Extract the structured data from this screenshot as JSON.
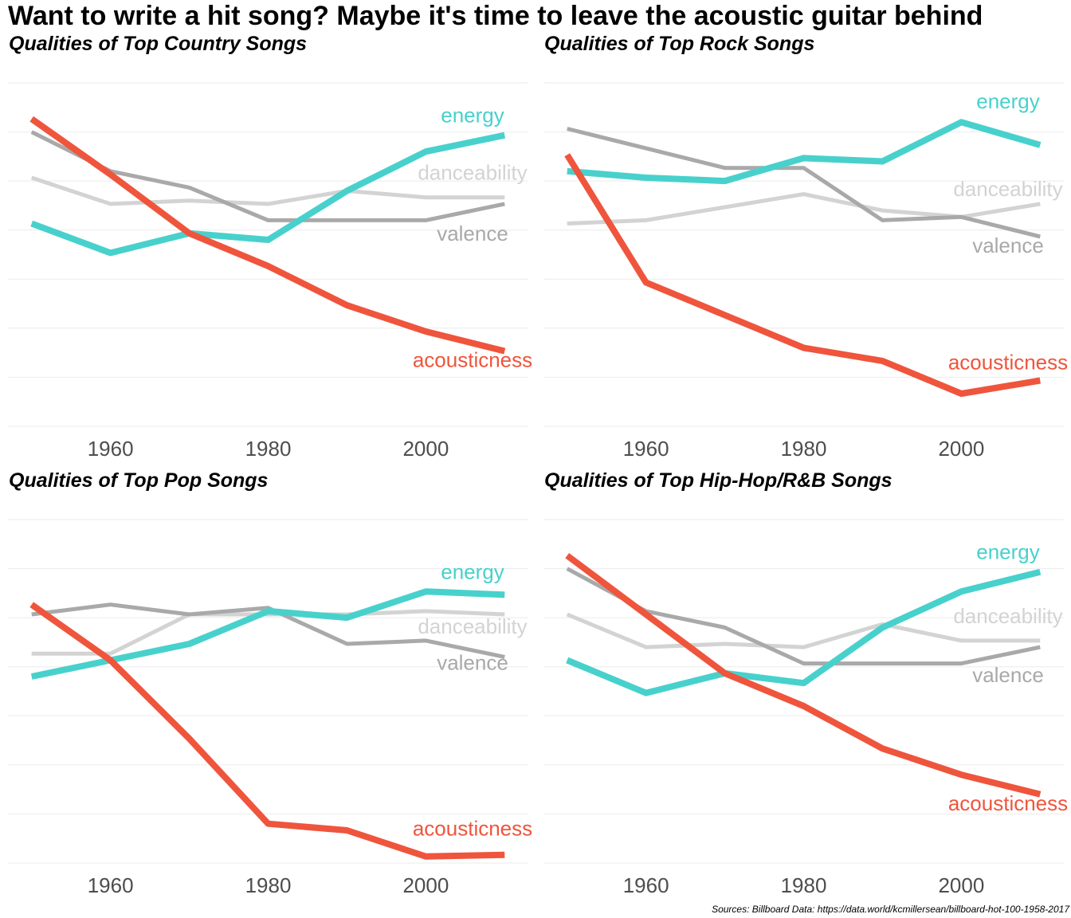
{
  "title": "Want to write a hit song? Maybe it's time to leave the acoustic guitar behind",
  "source": "Sources: Billboard Data: https://data.world/kcmillersean/billboard-hot-100-1958-2017",
  "colors": {
    "energy": "#48d1cc",
    "danceability": "#d3d3d3",
    "valence": "#a9a9a9",
    "acousticness": "#ef553c",
    "grid": "#ebebeb",
    "tick": "#4d4d4d"
  },
  "chart_data": [
    {
      "type": "line",
      "title": "Qualities of Top Country Songs",
      "x": [
        1950,
        1960,
        1970,
        1980,
        1990,
        2000,
        2010
      ],
      "xticks": [
        1960,
        1980,
        2000
      ],
      "xlim": [
        1947,
        2013
      ],
      "ylim": [
        -0.1,
        0.95
      ],
      "grid": true,
      "series": [
        {
          "name": "energy",
          "values": [
            0.52,
            0.43,
            0.49,
            0.47,
            0.62,
            0.74,
            0.79
          ]
        },
        {
          "name": "danceability",
          "values": [
            0.66,
            0.58,
            0.59,
            0.58,
            0.62,
            0.6,
            0.6
          ]
        },
        {
          "name": "valence",
          "values": [
            0.8,
            0.68,
            0.63,
            0.53,
            0.53,
            0.53,
            0.58
          ]
        },
        {
          "name": "acousticness",
          "values": [
            0.84,
            0.67,
            0.49,
            0.39,
            0.27,
            0.19,
            0.13
          ]
        }
      ]
    },
    {
      "type": "line",
      "title": "Qualities of Top Rock Songs",
      "x": [
        1950,
        1960,
        1970,
        1980,
        1990,
        2000,
        2010
      ],
      "xticks": [
        1960,
        1980,
        2000
      ],
      "xlim": [
        1947,
        2013
      ],
      "ylim": [
        -0.1,
        0.95
      ],
      "grid": true,
      "series": [
        {
          "name": "energy",
          "values": [
            0.68,
            0.66,
            0.65,
            0.72,
            0.71,
            0.83,
            0.76
          ]
        },
        {
          "name": "danceability",
          "values": [
            0.52,
            0.53,
            0.57,
            0.61,
            0.56,
            0.54,
            0.58
          ]
        },
        {
          "name": "valence",
          "values": [
            0.81,
            0.75,
            0.69,
            0.69,
            0.53,
            0.54,
            0.48
          ]
        },
        {
          "name": "acousticness",
          "values": [
            0.73,
            0.34,
            0.24,
            0.14,
            0.1,
            0.0,
            0.04
          ]
        }
      ]
    },
    {
      "type": "line",
      "title": "Qualities of Top Pop Songs",
      "x": [
        1950,
        1960,
        1970,
        1980,
        1990,
        2000,
        2010
      ],
      "xticks": [
        1960,
        1980,
        2000
      ],
      "xlim": [
        1947,
        2013
      ],
      "ylim": [
        -0.1,
        0.95
      ],
      "grid": true,
      "series": [
        {
          "name": "energy",
          "values": [
            0.47,
            0.52,
            0.57,
            0.67,
            0.65,
            0.73,
            0.72
          ]
        },
        {
          "name": "danceability",
          "values": [
            0.54,
            0.54,
            0.66,
            0.66,
            0.66,
            0.67,
            0.66
          ]
        },
        {
          "name": "valence",
          "values": [
            0.66,
            0.69,
            0.66,
            0.68,
            0.57,
            0.58,
            0.53
          ]
        },
        {
          "name": "acousticness",
          "values": [
            0.69,
            0.52,
            0.28,
            0.02,
            0.0,
            -0.08,
            -0.075
          ]
        }
      ]
    },
    {
      "type": "line",
      "title": "Qualities of Top Hip-Hop/R&B Songs",
      "x": [
        1950,
        1960,
        1970,
        1980,
        1990,
        2000,
        2010
      ],
      "xticks": [
        1960,
        1980,
        2000
      ],
      "xlim": [
        1947,
        2013
      ],
      "ylim": [
        -0.1,
        0.95
      ],
      "grid": true,
      "series": [
        {
          "name": "energy",
          "values": [
            0.52,
            0.42,
            0.48,
            0.45,
            0.62,
            0.73,
            0.79
          ]
        },
        {
          "name": "danceability",
          "values": [
            0.66,
            0.56,
            0.57,
            0.56,
            0.63,
            0.58,
            0.58
          ]
        },
        {
          "name": "valence",
          "values": [
            0.8,
            0.67,
            0.62,
            0.51,
            0.51,
            0.51,
            0.56
          ]
        },
        {
          "name": "acousticness",
          "values": [
            0.84,
            0.66,
            0.48,
            0.38,
            0.25,
            0.17,
            0.11
          ]
        }
      ]
    }
  ]
}
